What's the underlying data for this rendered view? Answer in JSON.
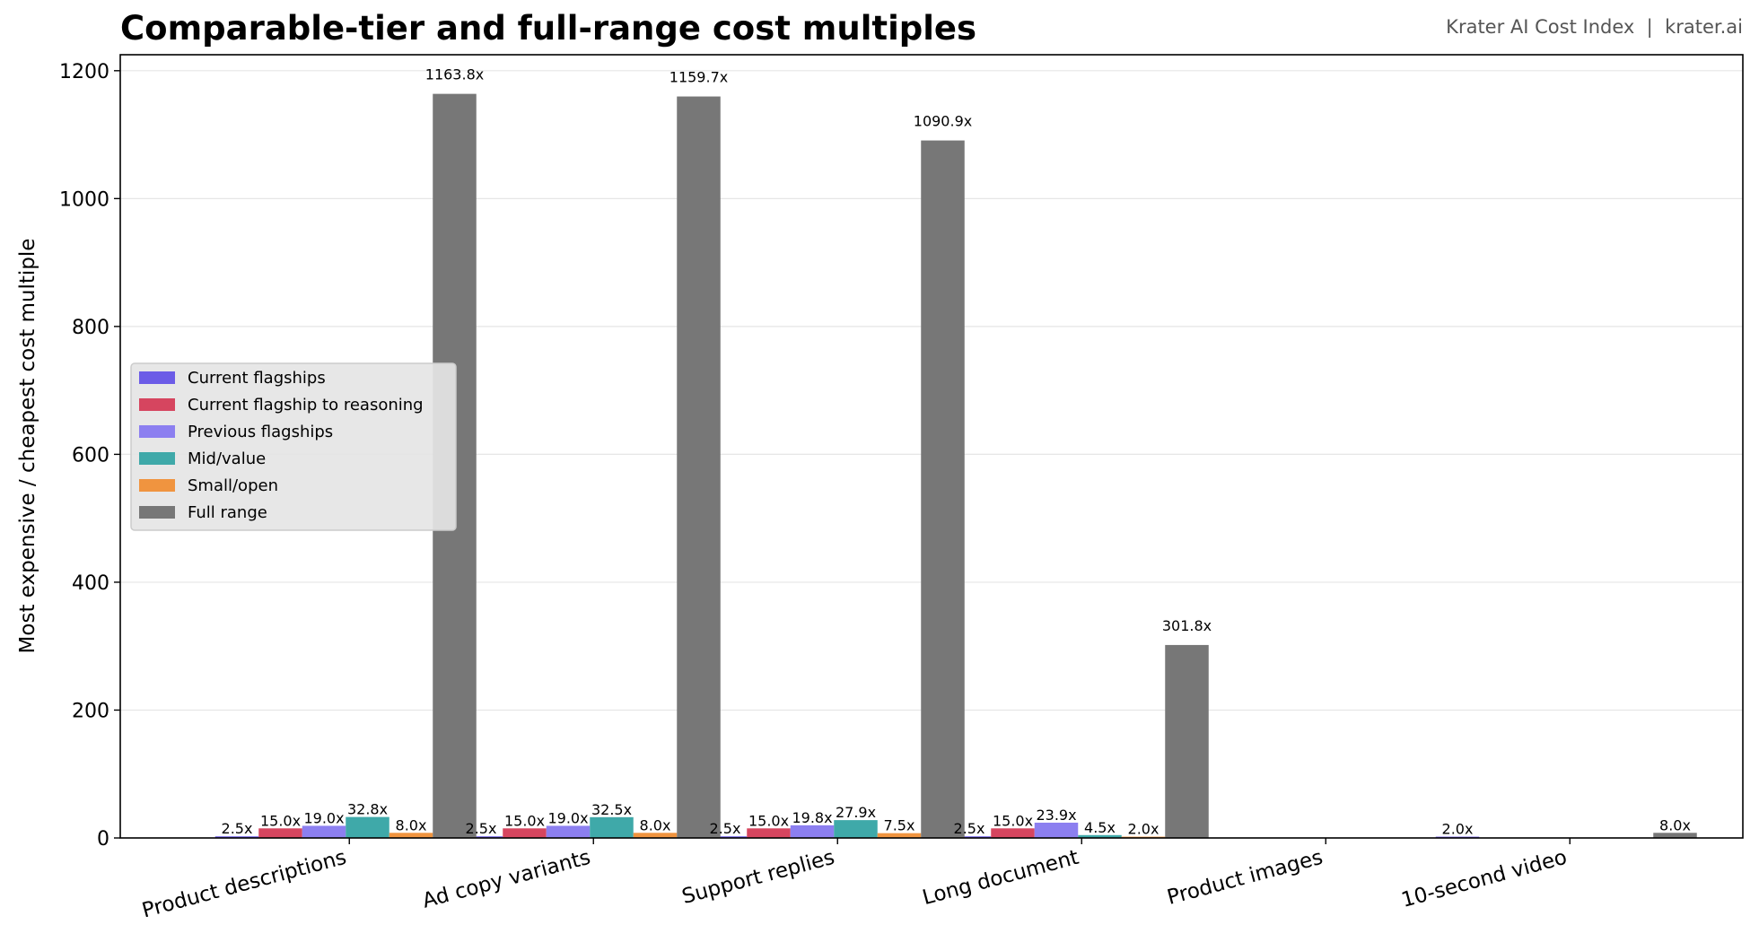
{
  "chart_data": {
    "type": "bar",
    "title": "Comparable-tier and full-range cost multiples",
    "ylabel": "Most expensive / cheapest cost multiple",
    "xlabel": "",
    "ylim": [
      0,
      1225
    ],
    "yticks": [
      "0",
      "200",
      "400",
      "600",
      "800",
      "1000",
      "1200"
    ],
    "ytick_values": [
      0,
      200,
      400,
      600,
      800,
      1000,
      1200
    ],
    "grid": "horizontal",
    "legend_position": "center-left",
    "categories": [
      "Product descriptions",
      "Ad copy variants",
      "Support replies",
      "Long document",
      "Product images",
      "10-second video"
    ],
    "series": [
      {
        "name": "Current flagships",
        "color": "#6c5ce7",
        "values": [
          2.5,
          2.5,
          2.5,
          2.5,
          null,
          2.0
        ],
        "labels": [
          "2.5x",
          "2.5x",
          "2.5x",
          "2.5x",
          "",
          "2.0x"
        ]
      },
      {
        "name": "Current flagship to reasoning",
        "color": "#d6455f",
        "values": [
          15.0,
          15.0,
          15.0,
          15.0,
          null,
          null
        ],
        "labels": [
          "15.0x",
          "15.0x",
          "15.0x",
          "15.0x",
          "",
          ""
        ]
      },
      {
        "name": "Previous flagships",
        "color": "#8c7ff0",
        "values": [
          19.0,
          19.0,
          19.8,
          23.9,
          null,
          null
        ],
        "labels": [
          "19.0x",
          "19.0x",
          "19.8x",
          "23.9x",
          "",
          ""
        ]
      },
      {
        "name": "Mid/value",
        "color": "#3fa9a9",
        "values": [
          32.8,
          32.5,
          27.9,
          4.5,
          null,
          null
        ],
        "labels": [
          "32.8x",
          "32.5x",
          "27.9x",
          "4.5x",
          "",
          ""
        ]
      },
      {
        "name": "Small/open",
        "color": "#f0943f",
        "values": [
          8.0,
          8.0,
          7.5,
          2.0,
          null,
          null
        ],
        "labels": [
          "8.0x",
          "8.0x",
          "7.5x",
          "2.0x",
          "",
          ""
        ]
      },
      {
        "name": "Full range",
        "color": "#777777",
        "values": [
          1163.8,
          1159.7,
          1090.9,
          301.8,
          null,
          8.0
        ],
        "labels": [
          "1163.8x",
          "1159.7x",
          "1090.9x",
          "301.8x",
          "",
          "8.0x"
        ]
      }
    ]
  },
  "header": {
    "brand": "Krater AI Cost Index  |  krater.ai"
  }
}
